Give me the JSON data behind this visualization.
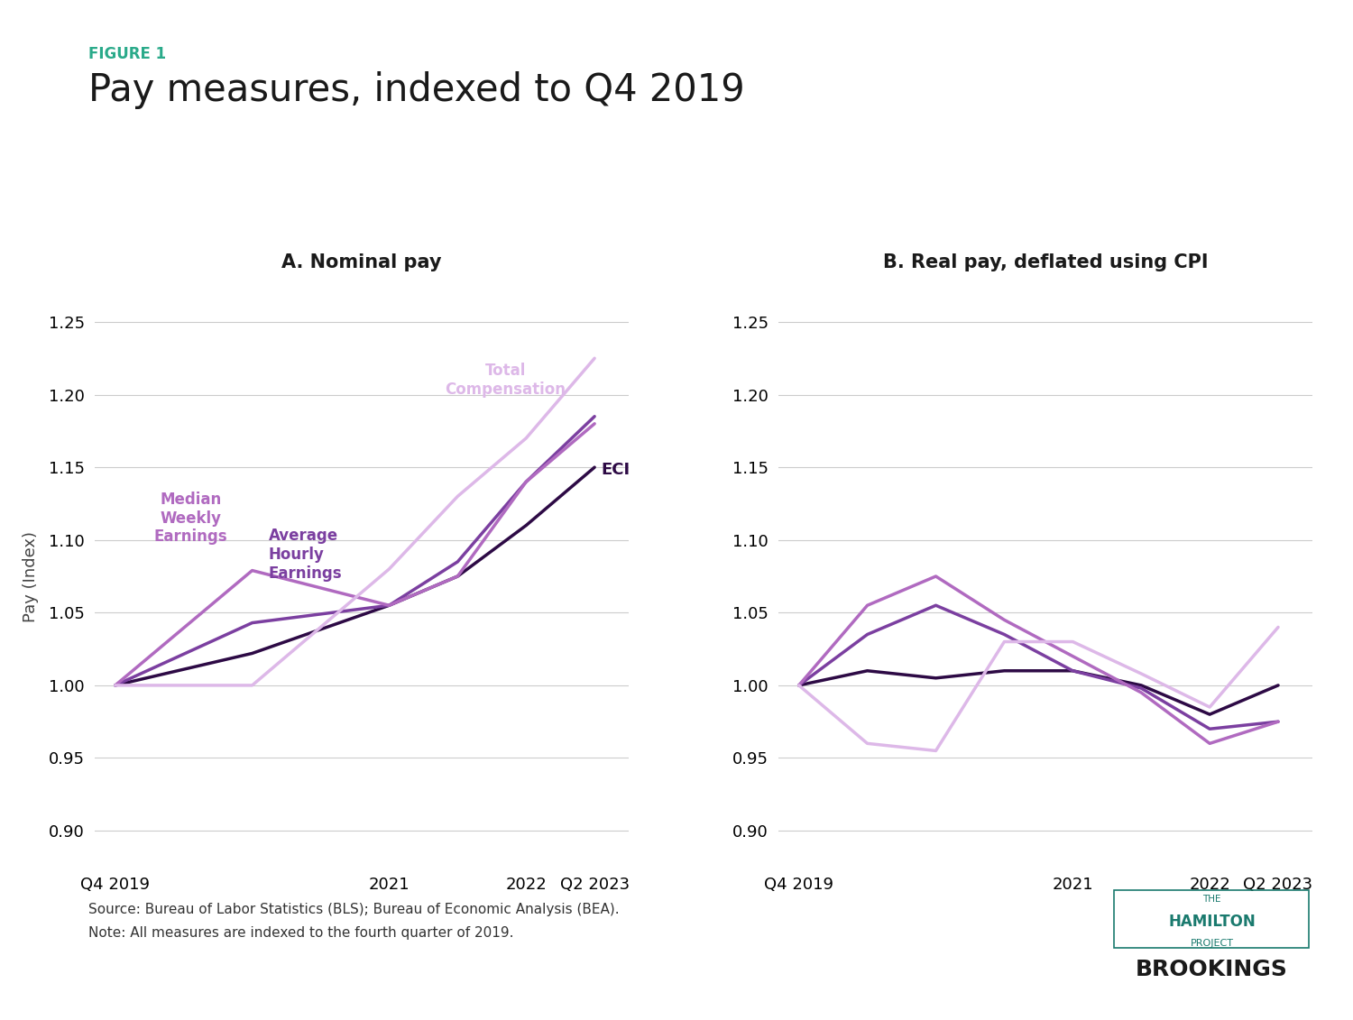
{
  "figure_label": "FIGURE 1",
  "title": "Pay measures, indexed to Q4 2019",
  "subtitle_a": "A. Nominal pay",
  "subtitle_b": "B. Real pay, deflated using CPI",
  "ylabel": "Pay (Index)",
  "source_text": "Source: Bureau of Labor Statistics (BLS); Bureau of Economic Analysis (BEA).",
  "note_text": "Note: All measures are indexed to the fourth quarter of 2019.",
  "color_eci": "#2d0a45",
  "color_avg_hourly": "#7b3fa0",
  "color_median_weekly": "#b06ac0",
  "color_total_compensation": "#ddb8e8",
  "ylim": [
    0.875,
    1.275
  ],
  "yticks": [
    0.9,
    0.95,
    1.0,
    1.05,
    1.1,
    1.15,
    1.2,
    1.25
  ],
  "figure_label_color": "#2aaa8a",
  "title_color": "#1a1a1a",
  "subtitle_color": "#1a1a1a",
  "background_color": "#ffffff",
  "grid_color": "#cccccc",
  "hamilton_color": "#1a7a6e",
  "brookings_color": "#1a1a1a"
}
